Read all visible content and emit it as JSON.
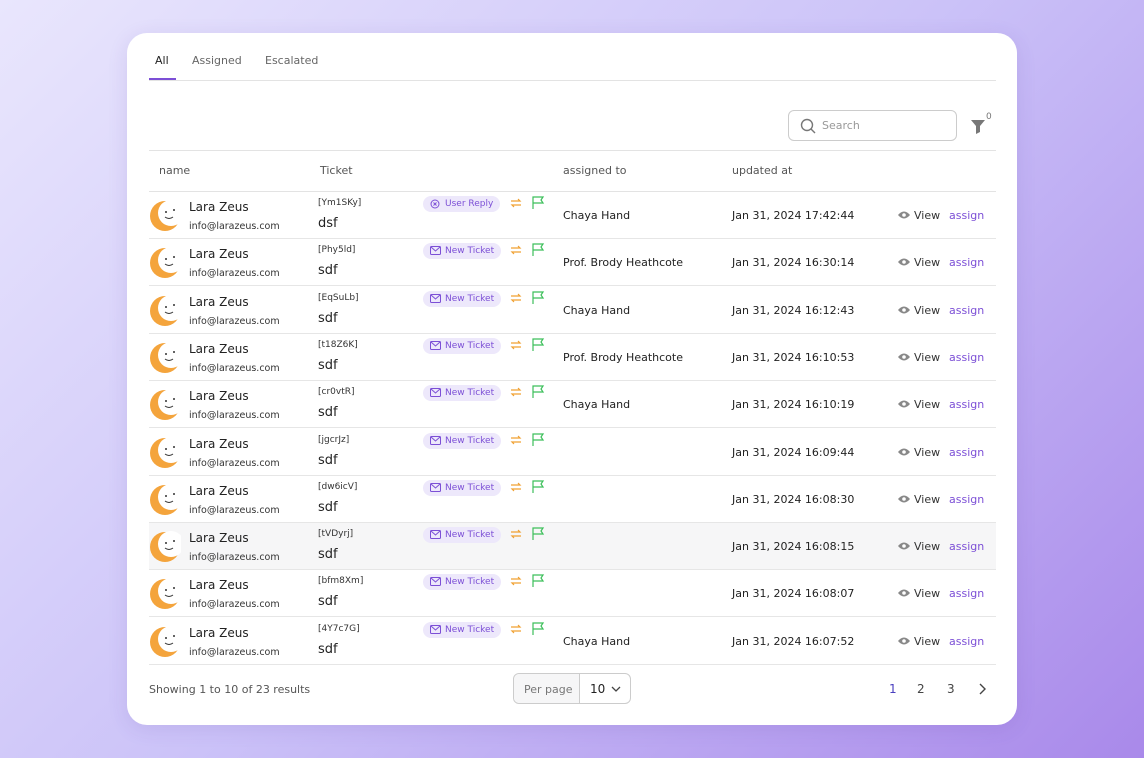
{
  "tabs": [
    "All",
    "Assigned",
    "Escalated"
  ],
  "search": {
    "placeholder": "Search"
  },
  "filter": {
    "count": "0"
  },
  "table": {
    "headers": [
      "name",
      "Ticket",
      "assigned to",
      "updated at"
    ],
    "row_actions": {
      "view": "View",
      "assign": "assign"
    },
    "rows": [
      {
        "name": "Lara Zeus",
        "email": "info@larazeus.com",
        "ticket_id": "[Ym1SKy]",
        "subject": "dsf",
        "status": "User Reply",
        "assigned_to": "Chaya Hand",
        "updated_at": "Jan 31, 2024 17:42:44"
      },
      {
        "name": "Lara Zeus",
        "email": "info@larazeus.com",
        "ticket_id": "[Phy5ld]",
        "subject": "sdf",
        "status": "New Ticket",
        "assigned_to": "Prof. Brody Heathcote",
        "updated_at": "Jan 31, 2024 16:30:14"
      },
      {
        "name": "Lara Zeus",
        "email": "info@larazeus.com",
        "ticket_id": "[EqSuLb]",
        "subject": "sdf",
        "status": "New Ticket",
        "assigned_to": "Chaya Hand",
        "updated_at": "Jan 31, 2024 16:12:43"
      },
      {
        "name": "Lara Zeus",
        "email": "info@larazeus.com",
        "ticket_id": "[t18Z6K]",
        "subject": "sdf",
        "status": "New Ticket",
        "assigned_to": "Prof. Brody Heathcote",
        "updated_at": "Jan 31, 2024 16:10:53"
      },
      {
        "name": "Lara Zeus",
        "email": "info@larazeus.com",
        "ticket_id": "[cr0vtR]",
        "subject": "sdf",
        "status": "New Ticket",
        "assigned_to": "Chaya Hand",
        "updated_at": "Jan 31, 2024 16:10:19"
      },
      {
        "name": "Lara Zeus",
        "email": "info@larazeus.com",
        "ticket_id": "[jgcrJz]",
        "subject": "sdf",
        "status": "New Ticket",
        "assigned_to": null,
        "updated_at": "Jan 31, 2024 16:09:44"
      },
      {
        "name": "Lara Zeus",
        "email": "info@larazeus.com",
        "ticket_id": "[dw6icV]",
        "subject": "sdf",
        "status": "New Ticket",
        "assigned_to": null,
        "updated_at": "Jan 31, 2024 16:08:30"
      },
      {
        "name": "Lara Zeus",
        "email": "info@larazeus.com",
        "ticket_id": "[tVDyrj]",
        "subject": "sdf",
        "status": "New Ticket",
        "assigned_to": null,
        "updated_at": "Jan 31, 2024 16:08:15"
      },
      {
        "name": "Lara Zeus",
        "email": "info@larazeus.com",
        "ticket_id": "[bfm8Xm]",
        "subject": "sdf",
        "status": "New Ticket",
        "assigned_to": null,
        "updated_at": "Jan 31, 2024 16:08:07"
      },
      {
        "name": "Lara Zeus",
        "email": "info@larazeus.com",
        "ticket_id": "[4Y7c7G]",
        "subject": "sdf",
        "status": "New Ticket",
        "assigned_to": "Chaya Hand",
        "updated_at": "Jan 31, 2024 16:07:52"
      }
    ]
  },
  "footer": {
    "summary": "Showing 1 to 10 of 23 results",
    "per_page_label": "Per page",
    "per_page_value": "10",
    "pages": [
      "1",
      "2",
      "3"
    ]
  }
}
